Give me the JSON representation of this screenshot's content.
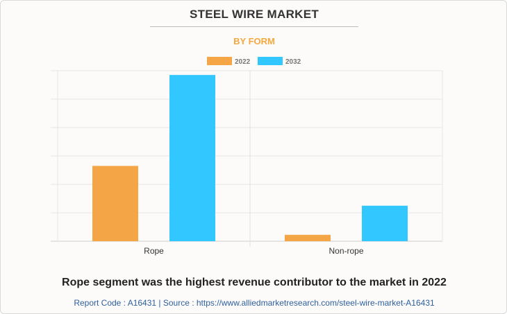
{
  "chart_data": {
    "type": "bar",
    "title": "STEEL WIRE MARKET",
    "subtitle": "BY FORM",
    "categories": [
      "Rope",
      "Non-rope"
    ],
    "series": [
      {
        "name": "2022",
        "values": [
          5.3,
          0.45
        ],
        "color": "#f4a546"
      },
      {
        "name": "2032",
        "values": [
          11.7,
          2.5
        ],
        "color": "#33c7ff"
      }
    ],
    "ylim": [
      0,
      12
    ],
    "grid": true,
    "legend": "top-center",
    "xlabel": "",
    "ylabel": ""
  },
  "footer": {
    "headline": "Rope segment was the highest revenue contributor to the market in 2022",
    "source": "Report Code : A16431  |  Source : https://www.alliedmarketresearch.com/steel-wire-market-A16431"
  }
}
